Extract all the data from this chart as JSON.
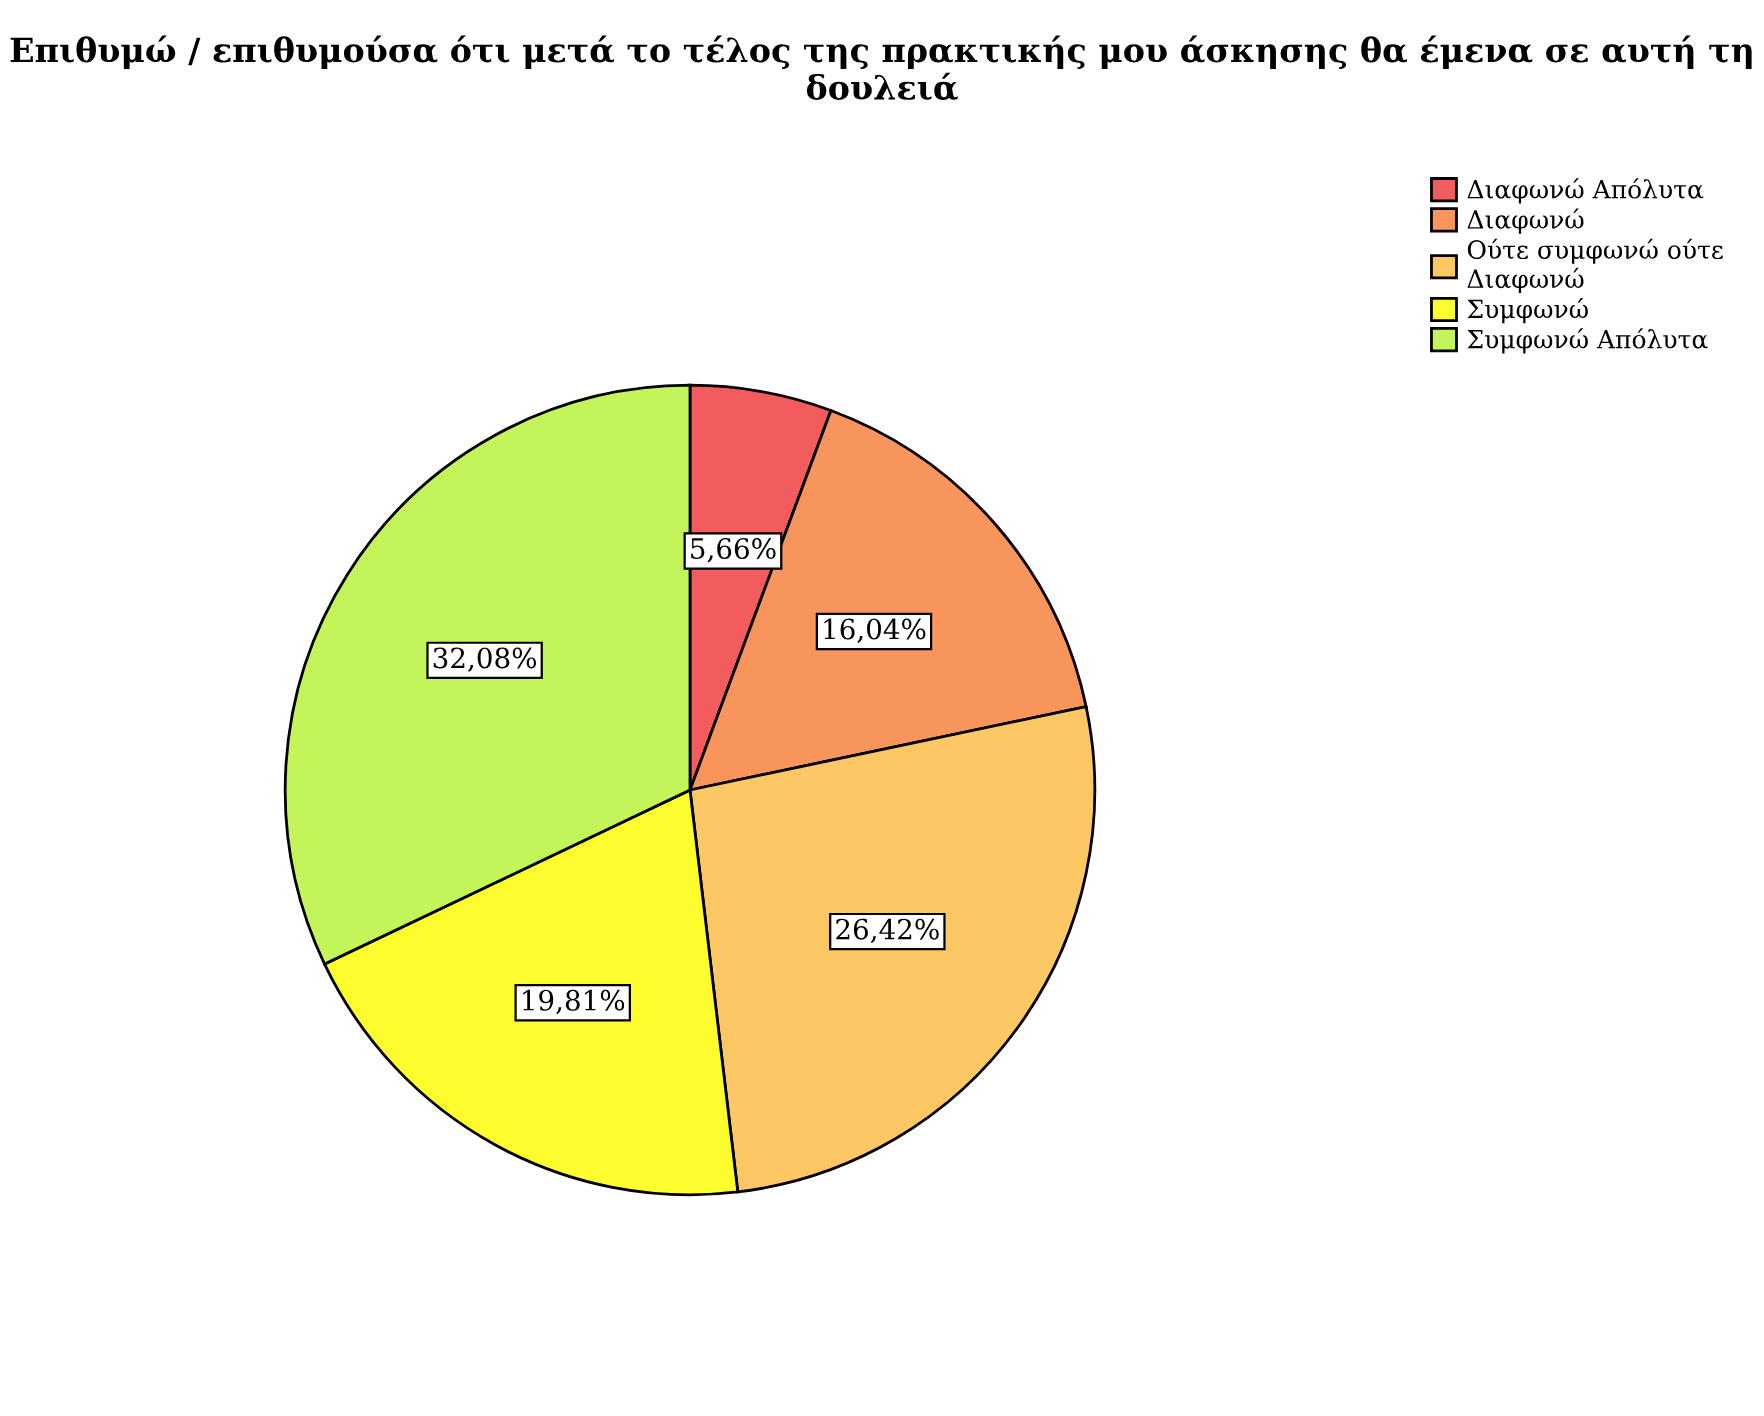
{
  "chart_data": {
    "type": "pie",
    "title": "Επιθυμώ / επιθυμούσα ότι μετά το τέλος της πρακτικής μου άσκησης θα έμενα σε αυτή τη δουλειά",
    "categories": [
      "Διαφωνώ Απόλυτα",
      "Διαφωνώ",
      "Ούτε συμφωνώ ούτε\nΔιαφωνώ",
      "Συμφωνώ",
      "Συμφωνώ Απόλυτα"
    ],
    "values": [
      5.66,
      16.04,
      26.42,
      19.81,
      32.08
    ],
    "value_labels": [
      "5,66%",
      "16,04%",
      "26,42%",
      "19,81%",
      "32,08%"
    ],
    "colors": [
      "#f25c5c",
      "#f7955c",
      "#fdc763",
      "#fdfd2e",
      "#c3f55a"
    ],
    "legend": "top right"
  }
}
